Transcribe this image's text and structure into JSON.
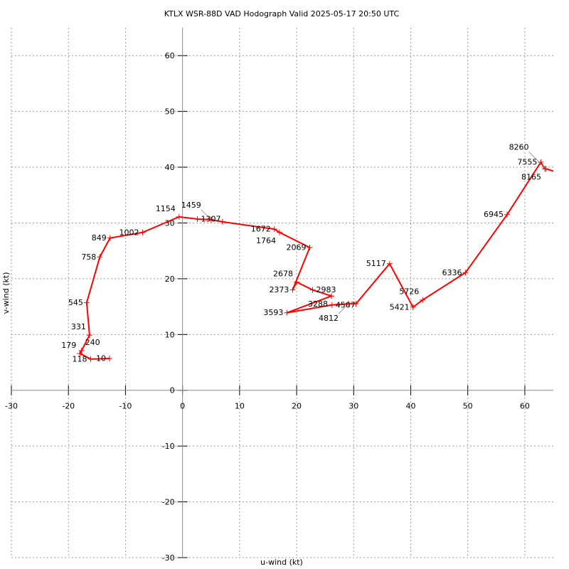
{
  "chart_data": {
    "type": "line",
    "title": "KTLX WSR-88D VAD Hodograph Valid 2025-05-17 20:50 UTC",
    "xlabel": "u-wind (kt)",
    "ylabel": "v-wind (kt)",
    "xlim": [
      -30,
      65
    ],
    "ylim": [
      -30,
      65
    ],
    "xticks": [
      -30,
      -20,
      -10,
      0,
      10,
      20,
      30,
      40,
      50,
      60
    ],
    "yticks": [
      -30,
      -20,
      -10,
      0,
      10,
      20,
      30,
      40,
      50,
      60
    ],
    "grid": true,
    "line_color": "#ff0000",
    "points": [
      {
        "label": "10",
        "u": -12.8,
        "v": 5.7
      },
      {
        "label": "118",
        "u": -16.1,
        "v": 5.6
      },
      {
        "label": "179",
        "u": -18.0,
        "v": 6.6
      },
      {
        "label": "240",
        "u": -17.7,
        "v": 7.1
      },
      {
        "label": "331",
        "u": -16.3,
        "v": 9.9
      },
      {
        "label": "545",
        "u": -16.8,
        "v": 15.7
      },
      {
        "label": "758",
        "u": -14.5,
        "v": 23.9
      },
      {
        "label": "849",
        "u": -12.7,
        "v": 27.3
      },
      {
        "label": "1002",
        "u": -7.0,
        "v": 28.3
      },
      {
        "label": "1154",
        "u": -0.6,
        "v": 31.1
      },
      {
        "label": "1307",
        "u": 2.6,
        "v": 30.7
      },
      {
        "label": "1459",
        "u": 5.0,
        "v": 30.6
      },
      {
        "label": "",
        "u": 7.0,
        "v": 30.2
      },
      {
        "label": "1672",
        "u": 16.1,
        "v": 28.9
      },
      {
        "label": "1764",
        "u": 17.0,
        "v": 28.3
      },
      {
        "label": "2069",
        "u": 22.3,
        "v": 25.6
      },
      {
        "label": "2373",
        "u": 19.3,
        "v": 18.0
      },
      {
        "label": "2678",
        "u": 20.0,
        "v": 19.4
      },
      {
        "label": "2983",
        "u": 22.8,
        "v": 18.0
      },
      {
        "label": "3288",
        "u": 26.1,
        "v": 16.9
      },
      {
        "label": "3593",
        "u": 18.3,
        "v": 13.9
      },
      {
        "label": "4507",
        "u": 26.2,
        "v": 15.3
      },
      {
        "label": "4812",
        "u": 29.1,
        "v": 15.5
      },
      {
        "label": "",
        "u": 30.4,
        "v": 15.5
      },
      {
        "label": "5117",
        "u": 36.3,
        "v": 22.7
      },
      {
        "label": "5421",
        "u": 40.4,
        "v": 14.9
      },
      {
        "label": "5726",
        "u": 42.1,
        "v": 16.2
      },
      {
        "label": "6336",
        "u": 49.6,
        "v": 21.1
      },
      {
        "label": "6945",
        "u": 56.9,
        "v": 31.5
      },
      {
        "label": "7555",
        "u": 62.8,
        "v": 40.9
      },
      {
        "label": "8165",
        "u": 63.5,
        "v": 39.7
      },
      {
        "label": "8260",
        "u": 63.7,
        "v": 39.7
      },
      {
        "label": "",
        "u": 66.0,
        "v": 39.0
      }
    ]
  }
}
